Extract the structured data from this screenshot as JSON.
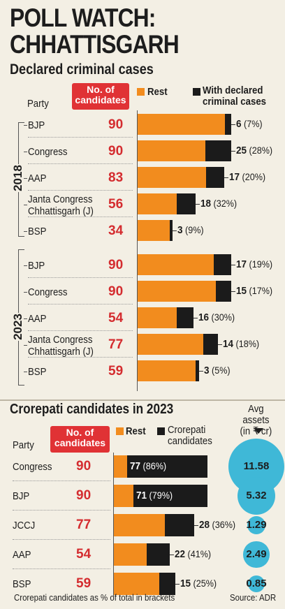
{
  "header": {
    "title_line1": "POLL WATCH:",
    "title_line2": "CHHATTISGARH",
    "subtitle": "Declared criminal cases"
  },
  "colors": {
    "rest": "#f28c1e",
    "highlight": "#1b1b1b",
    "accent_red": "#e03235",
    "bubble": "#3fb8d7",
    "background": "#f3efe4"
  },
  "criminal_section": {
    "col_party": "Party",
    "col_candidates": "No. of candidates",
    "legend_rest": "Rest",
    "legend_criminal": "With declared criminal cases",
    "years": [
      "2018",
      "2023"
    ]
  },
  "crorepati_section": {
    "title": "Crorepati candidates in 2023",
    "col_party": "Party",
    "col_candidates": "No. of candidates",
    "legend_rest": "Rest",
    "legend_crorepati": "Crorepati candidates",
    "assets_header": "Avg assets (in ₹ cr)",
    "footnote": "Crorepati candidates as % of total in brackets",
    "source": "Source: ADR"
  },
  "chart_data": [
    {
      "type": "bar",
      "title": "Declared criminal cases",
      "groups": [
        {
          "year": "2018",
          "parties": [
            {
              "party": "BJP",
              "candidates": 90,
              "criminal": 6,
              "pct": "(7%)"
            },
            {
              "party": "Congress",
              "candidates": 90,
              "criminal": 25,
              "pct": "(28%)"
            },
            {
              "party": "AAP",
              "candidates": 83,
              "criminal": 17,
              "pct": "(20%)"
            },
            {
              "party": "Janta Congress Chhattisgarh (J)",
              "candidates": 56,
              "criminal": 18,
              "pct": "(32%)"
            },
            {
              "party": "BSP",
              "candidates": 34,
              "criminal": 3,
              "pct": "(9%)"
            }
          ]
        },
        {
          "year": "2023",
          "parties": [
            {
              "party": "BJP",
              "candidates": 90,
              "criminal": 17,
              "pct": "(19%)"
            },
            {
              "party": "Congress",
              "candidates": 90,
              "criminal": 15,
              "pct": "(17%)"
            },
            {
              "party": "AAP",
              "candidates": 54,
              "criminal": 16,
              "pct": "(30%)"
            },
            {
              "party": "Janta Congress Chhattisgarh (J)",
              "candidates": 77,
              "criminal": 14,
              "pct": "(18%)"
            },
            {
              "party": "BSP",
              "candidates": 59,
              "criminal": 3,
              "pct": "(5%)"
            }
          ]
        }
      ]
    },
    {
      "type": "bar",
      "title": "Crorepati candidates in 2023",
      "parties": [
        {
          "party": "Congress",
          "candidates": 90,
          "crorepati": 77,
          "pct": "(86%)",
          "avg_assets": "11.58"
        },
        {
          "party": "BJP",
          "candidates": 90,
          "crorepati": 71,
          "pct": "(79%)",
          "avg_assets": "5.32"
        },
        {
          "party": "JCCJ",
          "candidates": 77,
          "crorepati": 28,
          "pct": "(36%)",
          "avg_assets": "1.29"
        },
        {
          "party": "AAP",
          "candidates": 54,
          "crorepati": 22,
          "pct": "(41%)",
          "avg_assets": "2.49"
        },
        {
          "party": "BSP",
          "candidates": 59,
          "crorepati": 15,
          "pct": "(25%)",
          "avg_assets": "0.85"
        }
      ]
    }
  ]
}
